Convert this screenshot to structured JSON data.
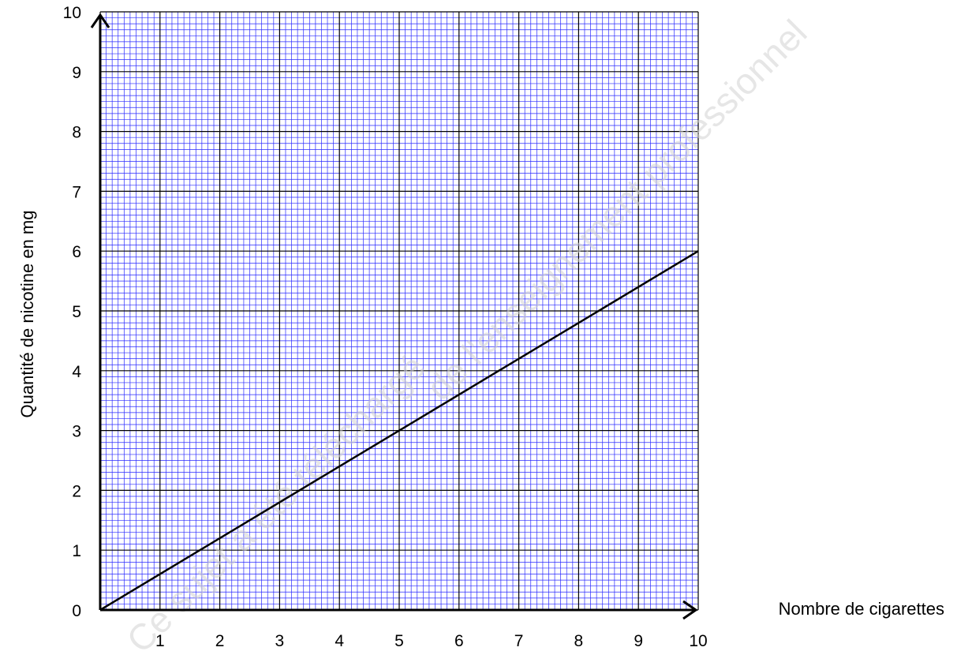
{
  "watermark": {
    "line1": "Ce sujet a été téléchargé",
    "line2": "de l'enseignement professionnel"
  },
  "chart_data": {
    "type": "line",
    "title": "",
    "xlabel": "Nombre de cigarettes",
    "ylabel": "Quantité de nicotine en mg",
    "xlim": [
      0,
      10
    ],
    "ylim": [
      0,
      10
    ],
    "x_ticks": [
      1,
      2,
      3,
      4,
      5,
      6,
      7,
      8,
      9,
      10
    ],
    "y_ticks": [
      0,
      1,
      2,
      3,
      4,
      5,
      6,
      7,
      8,
      9,
      10
    ],
    "minor_divisions_per_unit": 10,
    "grid": true,
    "colors": {
      "minor_grid": "#2a2aff",
      "major_grid": "#000000",
      "line": "#000000"
    },
    "series": [
      {
        "x": [
          0,
          10
        ],
        "y": [
          0,
          6
        ]
      }
    ]
  }
}
